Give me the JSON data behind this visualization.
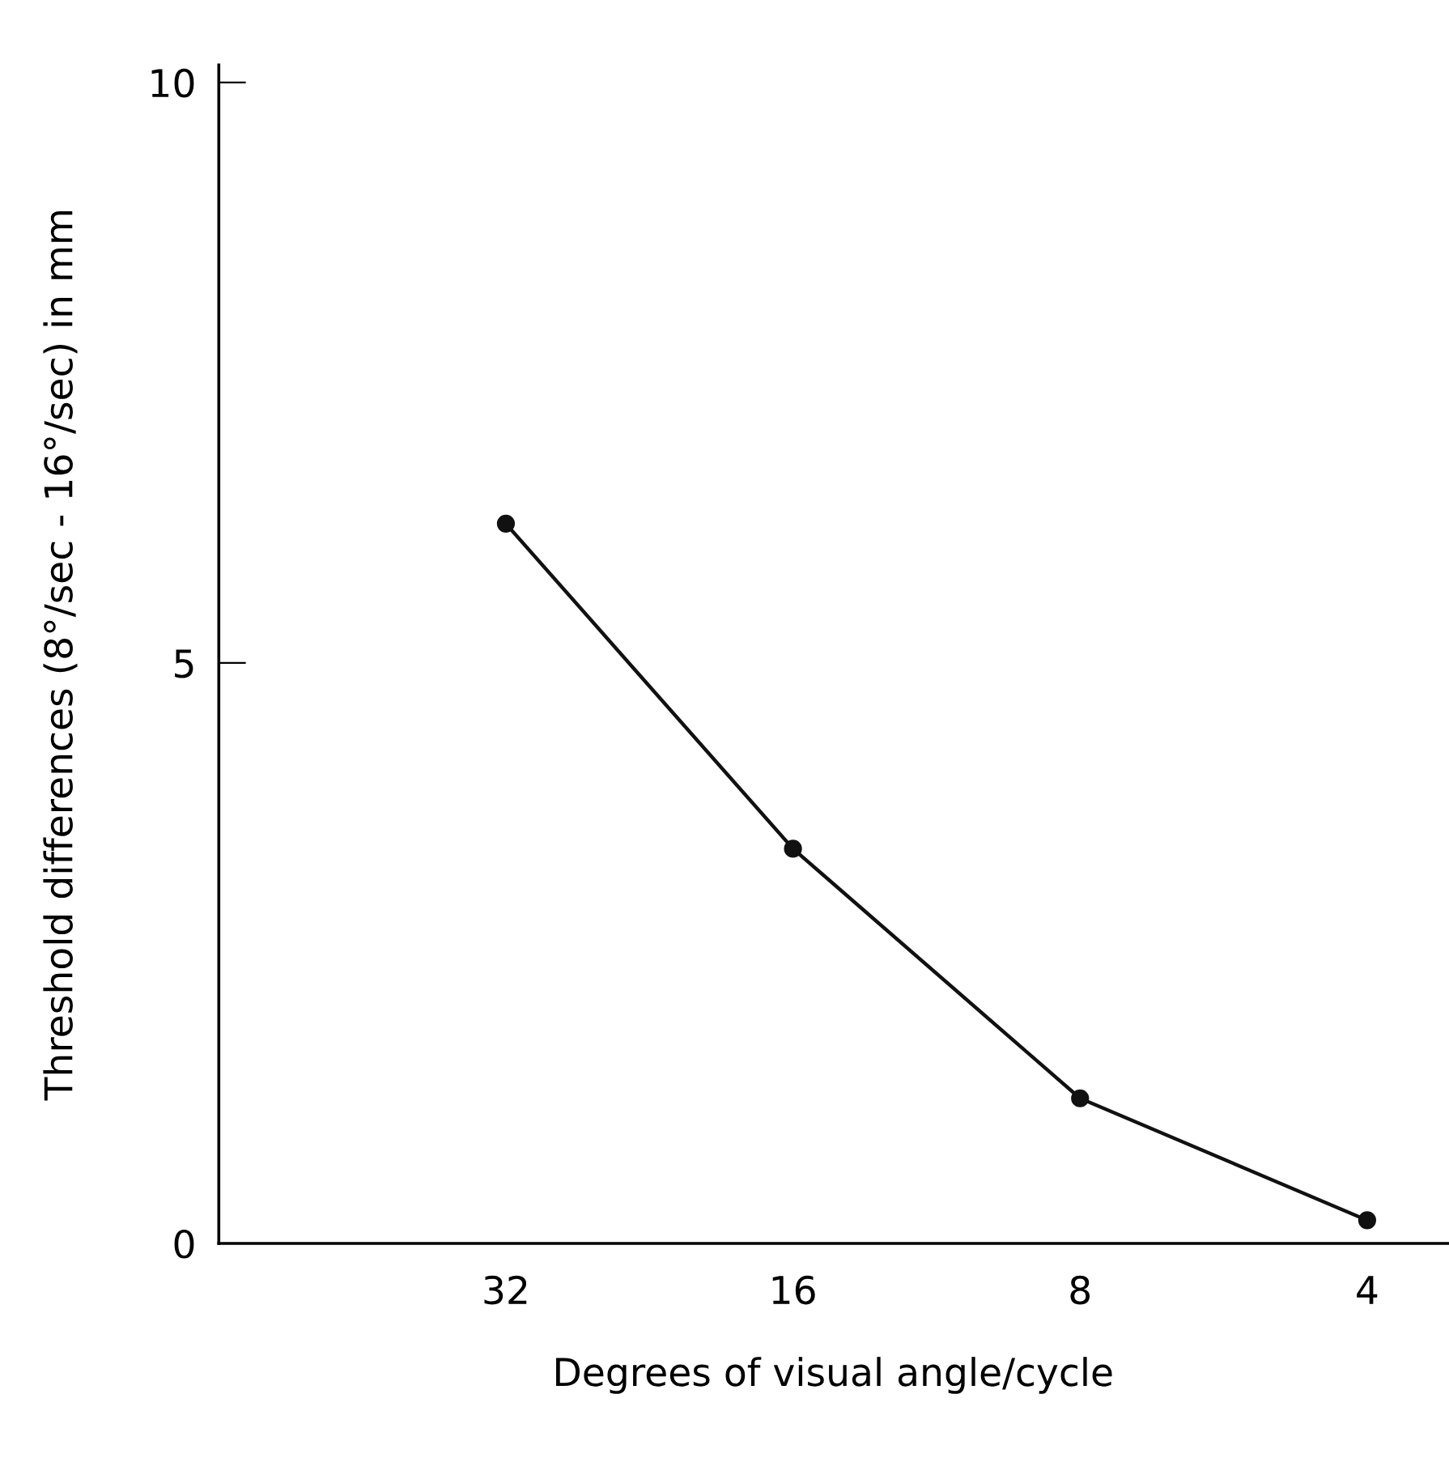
{
  "chart_data": {
    "type": "line",
    "xlabel": "Degrees of visual angle/cycle",
    "ylabel": "Threshold differences (8°/sec - 16°/sec) in mm",
    "categories": [
      "32",
      "16",
      "8",
      "4"
    ],
    "series": [
      {
        "color": "#111111",
        "values": [
          6.2,
          3.4,
          1.25,
          0.2
        ]
      }
    ],
    "ylim": [
      0,
      10.15
    ],
    "yticks": [
      0,
      5,
      10
    ],
    "marker": "circle",
    "line_style": "solid",
    "grid": false,
    "legend": false
  }
}
